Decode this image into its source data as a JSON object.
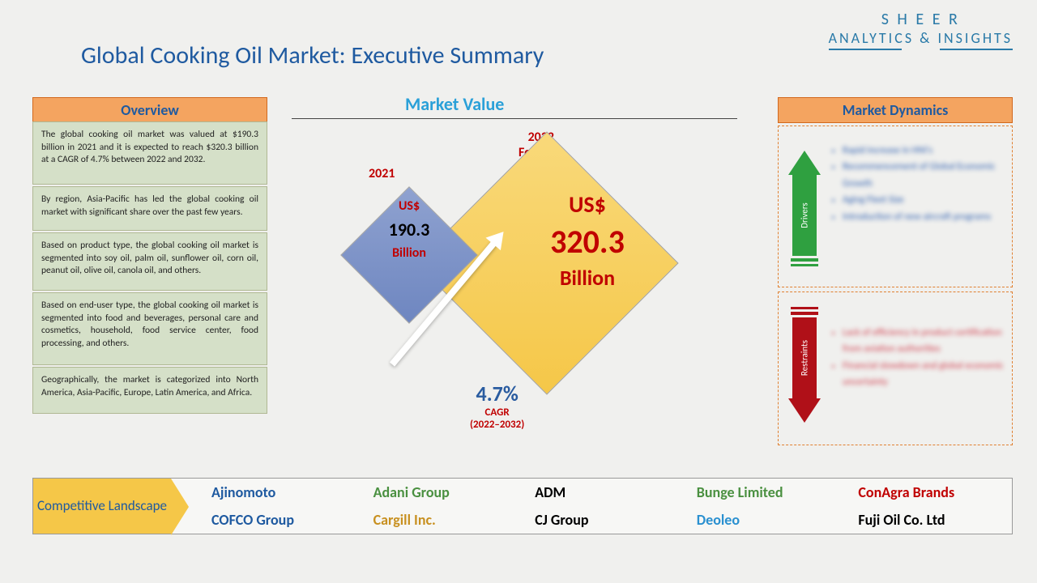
{
  "logo": {
    "line1": "S H E E R",
    "line2": "ANALYTICS & INSIGHTS"
  },
  "title": "Global Cooking Oil Market: Executive Summary",
  "marketValueLabel": "Market Value",
  "overview": {
    "header": "Overview",
    "p1": "The global cooking oil market was valued at $190.3 billion in 2021 and it is expected to reach $320.3 billion at a CAGR of 4.7% between 2022 and 2032.",
    "p2": "By region, Asia-Pacific has led the global cooking oil market with significant share over the past few years.",
    "p3": "Based on product type, the global cooking oil market is segmented into soy oil, palm oil, sunflower oil, corn oil, peanut oil, olive oil, canola oil, and others.",
    "p4": "Based on end-user type, the global cooking oil market is segmented into food and beverages, personal care and cosmetics, household, food service center, food processing, and others.",
    "p5": "Geographically, the market is categorized into North America, Asia-Pacific, Europe, Latin America, and Africa."
  },
  "diamonds": {
    "year1": "2021",
    "year2l1": "2032",
    "year2l2": "Forecast",
    "small": {
      "currency": "US$",
      "value": "190.3",
      "unit": "Billion"
    },
    "large": {
      "currency": "US$",
      "value": "320.3",
      "unit": "Billion"
    }
  },
  "cagr": {
    "percent": "4.7%",
    "label": "CAGR",
    "range": "(2022–2032)"
  },
  "dynamics": {
    "header": "Market Dynamics",
    "driversLabel": "Drivers",
    "restraintsLabel": "Restraints",
    "drivers": [
      "Rapid increase in HNI's",
      "Recommencement of Global Economic Growth",
      "Aging Fleet Size",
      "Introduction of new aircraft programs"
    ],
    "restraints": [
      "Lack of efficiency in product certification from aviation authorities",
      "Financial slowdown and global economic uncertainty"
    ]
  },
  "competitive": {
    "header": "Competitive Landscape",
    "companies": [
      {
        "name": "Ajinomoto",
        "color": "#1f5aa0"
      },
      {
        "name": "Adani Group",
        "color": "#4a9040"
      },
      {
        "name": "ADM",
        "color": "#000000"
      },
      {
        "name": "Bunge Limited",
        "color": "#4a9040"
      },
      {
        "name": "ConAgra Brands",
        "color": "#c00000"
      },
      {
        "name": "COFCO Group",
        "color": "#1f5aa0"
      },
      {
        "name": "Cargill Inc.",
        "color": "#c89020"
      },
      {
        "name": "CJ Group",
        "color": "#000000"
      },
      {
        "name": "Deoleo",
        "color": "#2a90d0"
      },
      {
        "name": "Fuji Oil Co. Ltd",
        "color": "#000000"
      }
    ]
  },
  "colors": {
    "headerBg": "#f4a460",
    "overviewBg": "#d5e0c8",
    "titleColor": "#1f5aa0",
    "accent": "#c00000",
    "driverGreen": "#2fa040",
    "restraintRed": "#b01018"
  }
}
